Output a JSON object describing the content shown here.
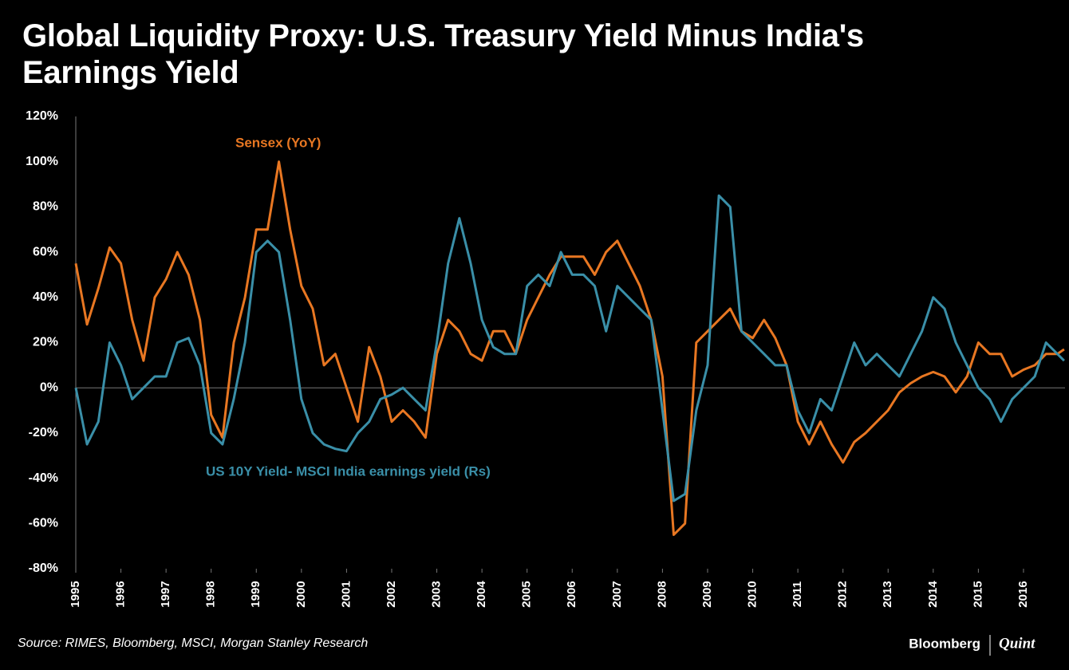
{
  "chart_data": {
    "type": "line",
    "title": "Global Liquidity Proxy: U.S. Treasury Yield Minus India's Earnings Yield",
    "source": "Source: RIMES, Bloomberg, MSCI, Morgan Stanley Research",
    "brand": {
      "name": "Bloomberg",
      "partner": "Quint"
    },
    "x": [
      1995,
      1995.25,
      1995.5,
      1995.75,
      1996,
      1996.25,
      1996.5,
      1996.75,
      1997,
      1997.25,
      1997.5,
      1997.75,
      1998,
      1998.25,
      1998.5,
      1998.75,
      1999,
      1999.25,
      1999.5,
      1999.75,
      2000,
      2000.25,
      2000.5,
      2000.75,
      2001,
      2001.25,
      2001.5,
      2001.75,
      2002,
      2002.25,
      2002.5,
      2002.75,
      2003,
      2003.25,
      2003.5,
      2003.75,
      2004,
      2004.25,
      2004.5,
      2004.75,
      2005,
      2005.25,
      2005.5,
      2005.75,
      2006,
      2006.25,
      2006.5,
      2006.75,
      2007,
      2007.25,
      2007.5,
      2007.75,
      2008,
      2008.25,
      2008.5,
      2008.75,
      2009,
      2009.25,
      2009.5,
      2009.75,
      2010,
      2010.25,
      2010.5,
      2010.75,
      2011,
      2011.25,
      2011.5,
      2011.75,
      2012,
      2012.25,
      2012.5,
      2012.75,
      2013,
      2013.25,
      2013.5,
      2013.75,
      2014,
      2014.25,
      2014.5,
      2014.75,
      2015,
      2015.25,
      2015.5,
      2015.75,
      2016,
      2016.25,
      2016.5,
      2016.75,
      2016.9
    ],
    "series": [
      {
        "name": "Sensex (YoY)",
        "color": "#e87722",
        "values": [
          55,
          28,
          44,
          62,
          55,
          30,
          12,
          40,
          48,
          60,
          50,
          30,
          -12,
          -22,
          20,
          40,
          70,
          70,
          100,
          70,
          45,
          35,
          10,
          15,
          0,
          -15,
          18,
          5,
          -15,
          -10,
          -15,
          -22,
          15,
          30,
          25,
          15,
          12,
          25,
          25,
          15,
          30,
          40,
          50,
          58,
          58,
          58,
          50,
          60,
          65,
          55,
          45,
          30,
          5,
          -65,
          -60,
          20,
          25,
          30,
          35,
          25,
          22,
          30,
          22,
          10,
          -15,
          -25,
          -15,
          -25,
          -33,
          -24,
          -20,
          -15,
          -10,
          -2,
          2,
          5,
          7,
          5,
          -2,
          5,
          20,
          15,
          15,
          5,
          8,
          10,
          15,
          15,
          17
        ]
      },
      {
        "name": "US 10Y Yield- MSCI India earnings yield (Rs)",
        "color": "#3a8fa8",
        "values": [
          0,
          -25,
          -15,
          20,
          10,
          -5,
          0,
          5,
          5,
          20,
          22,
          10,
          -20,
          -25,
          -5,
          20,
          60,
          65,
          60,
          30,
          -5,
          -20,
          -25,
          -27,
          -28,
          -20,
          -15,
          -5,
          -3,
          0,
          -5,
          -10,
          20,
          55,
          75,
          55,
          30,
          18,
          15,
          15,
          45,
          50,
          45,
          60,
          50,
          50,
          45,
          25,
          45,
          40,
          35,
          30,
          -10,
          -50,
          -47,
          -10,
          10,
          85,
          80,
          25,
          20,
          15,
          10,
          10,
          -10,
          -20,
          -5,
          -10,
          5,
          20,
          10,
          15,
          10,
          5,
          15,
          25,
          40,
          35,
          20,
          10,
          0,
          -5,
          -15,
          -5,
          0,
          5,
          20,
          15,
          12
        ]
      }
    ],
    "xlim": [
      1995,
      2016.92
    ],
    "xticks": [
      1995,
      1996,
      1997,
      1998,
      1999,
      2000,
      2001,
      2002,
      2003,
      2004,
      2005,
      2006,
      2007,
      2008,
      2009,
      2010,
      2011,
      2012,
      2013,
      2014,
      2015,
      2016
    ],
    "ylim": [
      -80,
      120
    ],
    "yticks": [
      {
        "value": -80,
        "label": "-80%"
      },
      {
        "value": -60,
        "label": "-60%"
      },
      {
        "value": -40,
        "label": "-40%"
      },
      {
        "value": -20,
        "label": "-20%"
      },
      {
        "value": 0,
        "label": "0%"
      },
      {
        "value": 20,
        "label": "20%"
      },
      {
        "value": 40,
        "label": "40%"
      },
      {
        "value": 60,
        "label": "60%"
      },
      {
        "value": 80,
        "label": "80%"
      },
      {
        "value": 100,
        "label": "100%"
      },
      {
        "value": 120,
        "label": "120%"
      }
    ],
    "grid": false
  }
}
